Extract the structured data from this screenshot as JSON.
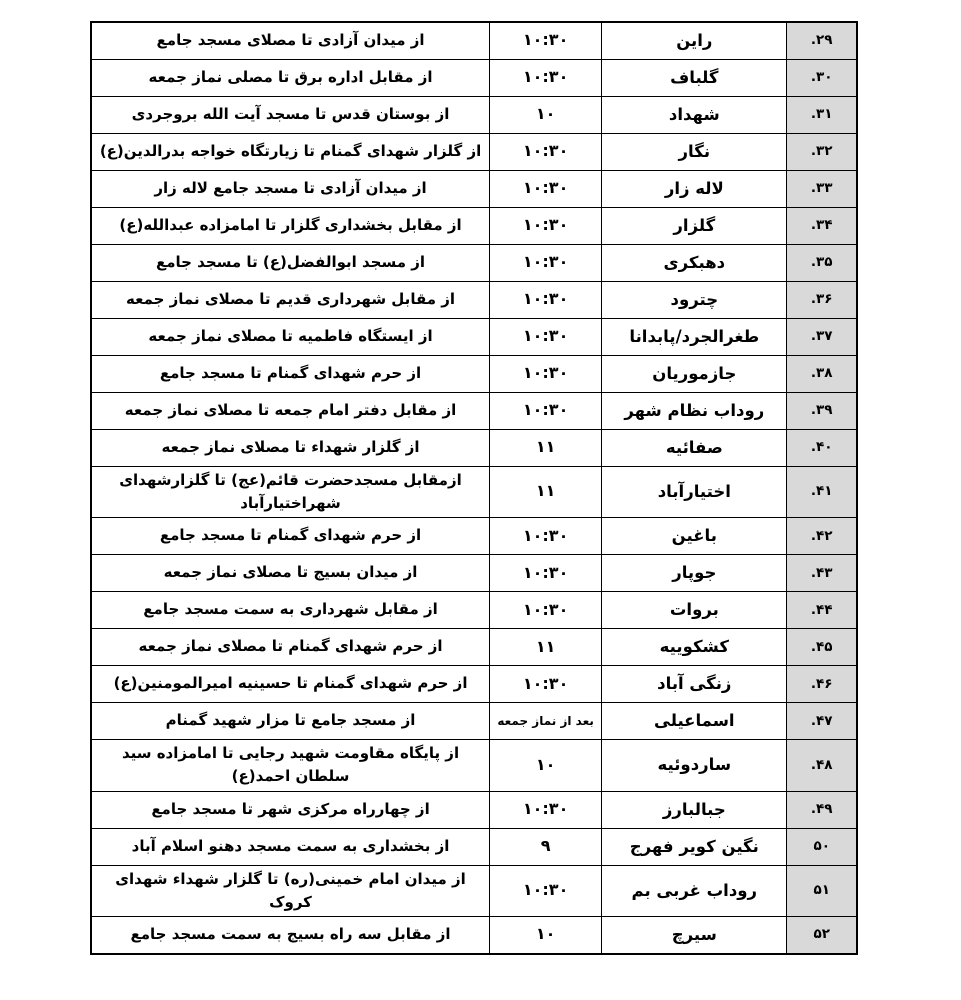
{
  "page": {
    "background_color": "#ffffff"
  },
  "table": {
    "colors": {
      "number_column_background": "#d9d9d9",
      "border": "#000000",
      "text": "#000000"
    },
    "rows": [
      {
        "number": "۲۹.",
        "city": "راین",
        "time": "۱۰:۳۰",
        "route": "از میدان آزادی تا مصلای مسجد جامع"
      },
      {
        "number": "۳۰.",
        "city": "گلباف",
        "time": "۱۰:۳۰",
        "route": "از مقابل اداره برق تا مصلی نماز جمعه"
      },
      {
        "number": "۳۱.",
        "city": "شهداد",
        "time": "۱۰",
        "route": "از بوستان قدس تا مسجد آیت الله بروجردی"
      },
      {
        "number": "۳۲.",
        "city": "نگار",
        "time": "۱۰:۳۰",
        "route": "از گلزار شهدای گمنام تا زیارتگاه خواجه بدرالدین(ع)"
      },
      {
        "number": "۳۳.",
        "city": "لاله زار",
        "time": "۱۰:۳۰",
        "route": "از میدان آزادی تا مسجد جامع لاله زار"
      },
      {
        "number": "۳۴.",
        "city": "گلزار",
        "time": "۱۰:۳۰",
        "route": "از مقابل بخشداری گلزار تا امامزاده عبدالله(ع)"
      },
      {
        "number": "۳۵.",
        "city": "دهبکری",
        "time": "۱۰:۳۰",
        "route": "از مسجد ابوالفضل(ع) تا مسجد جامع"
      },
      {
        "number": "۳۶.",
        "city": "چترود",
        "time": "۱۰:۳۰",
        "route": "از مقابل شهرداری قدیم تا مصلای نماز جمعه"
      },
      {
        "number": "۳۷.",
        "city": "طغرالجرد/پابدانا",
        "time": "۱۰:۳۰",
        "route": "از ایستگاه فاطمیه تا مصلای نماز جمعه"
      },
      {
        "number": "۳۸.",
        "city": "جازموریان",
        "time": "۱۰:۳۰",
        "route": "از حرم شهدای گمنام تا مسجد جامع"
      },
      {
        "number": "۳۹.",
        "city": "روداب نظام شهر",
        "time": "۱۰:۳۰",
        "route": "از مقابل دفتر امام جمعه تا مصلای نماز جمعه"
      },
      {
        "number": "۴۰.",
        "city": "صفائیه",
        "time": "۱۱",
        "route": "از گلزار شهداء تا مصلای نماز جمعه"
      },
      {
        "number": "۴۱.",
        "city": "اختیارآباد",
        "time": "۱۱",
        "route": "ازمقابل مسجدحضرت قائم(عج) تا گلزارشهدای شهراختیارآباد"
      },
      {
        "number": "۴۲.",
        "city": "باغین",
        "time": "۱۰:۳۰",
        "route": "از حرم شهدای گمنام تا مسجد جامع"
      },
      {
        "number": "۴۳.",
        "city": "جوپار",
        "time": "۱۰:۳۰",
        "route": "از میدان بسیج تا مصلای نماز جمعه"
      },
      {
        "number": "۴۴.",
        "city": "بروات",
        "time": "۱۰:۳۰",
        "route": "از مقابل شهرداری به سمت مسجد جامع"
      },
      {
        "number": "۴۵.",
        "city": "کشکوییه",
        "time": "۱۱",
        "route": "از حرم شهدای گمنام تا مصلای نماز جمعه"
      },
      {
        "number": "۴۶.",
        "city": "زنگی آباد",
        "time": "۱۰:۳۰",
        "route": "از حرم شهدای گمنام تا حسینیه امیرالمومنین(ع)"
      },
      {
        "number": "۴۷.",
        "city": "اسماعیلی",
        "time": "بعد از نماز جمعه",
        "route": "از مسجد جامع تا مزار شهید گمنام"
      },
      {
        "number": "۴۸.",
        "city": "ساردوئیه",
        "time": "۱۰",
        "route": "از پایگاه مقاومت شهید رجایی تا امامزاده سید سلطان احمد(ع)"
      },
      {
        "number": "۴۹.",
        "city": "جبالبارز",
        "time": "۱۰:۳۰",
        "route": "از چهارراه مرکزی شهر تا مسجد جامع"
      },
      {
        "number": "۵۰",
        "city": "نگین کویر فهرج",
        "time": "۹",
        "route": "از بخشداری به سمت مسجد دهنو اسلام آباد"
      },
      {
        "number": "۵۱",
        "city": "روداب غربی بم",
        "time": "۱۰:۳۰",
        "route": "از میدان امام خمینی(ره) تا گلزار شهداء شهدای کروک"
      },
      {
        "number": "۵۲",
        "city": "سیرچ",
        "time": "۱۰",
        "route": "از مقابل سه راه بسیج به سمت مسجد جامع"
      }
    ]
  }
}
